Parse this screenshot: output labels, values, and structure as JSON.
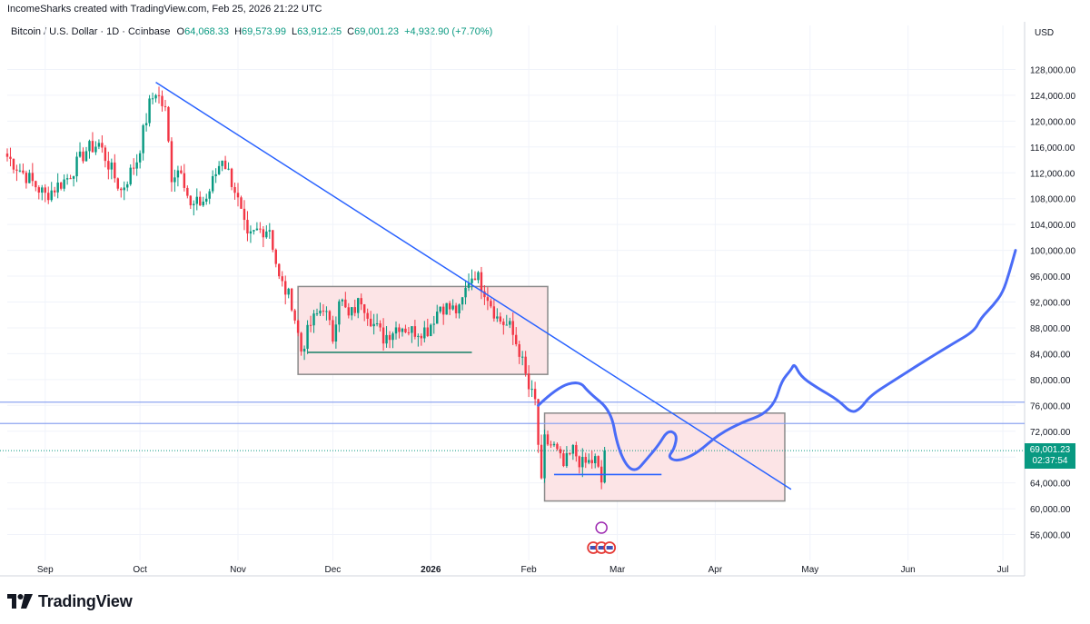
{
  "attribution": "IncomeSharks created with TradingView.com, Feb 25, 2026 21:22 UTC",
  "legend": {
    "symbol": "Bitcoin / U.S. Dollar · 1D · Coinbase",
    "o_label": "O",
    "o_value": "64,068.33",
    "h_label": "H",
    "h_value": "69,573.99",
    "l_label": "L",
    "l_value": "63,912.25",
    "c_label": "C",
    "c_value": "69,001.23",
    "change": "+4,932.90 (+7.70%)"
  },
  "price_tag": {
    "price": "69,001.23",
    "countdown": "02:37:54"
  },
  "footer": {
    "brand": "TradingView",
    "logo_icon": "tradingview-logo-icon"
  },
  "colors": {
    "up": "#089981",
    "down": "#f23645",
    "trendline": "#2962ff",
    "projection": "#4a6cf7",
    "zone_fill": "#fce4e6",
    "zone_border": "#8a8a8a",
    "support": "#26866e",
    "hline": "#8ea4f0"
  },
  "chart_data": {
    "type": "candlestick",
    "currency_label": "USD",
    "y_ticks": [
      "128,000.00",
      "124,000.00",
      "120,000.00",
      "116,000.00",
      "112,000.00",
      "108,000.00",
      "104,000.00",
      "100,000.00",
      "96,000.00",
      "92,000.00",
      "88,000.00",
      "84,000.00",
      "80,000.00",
      "76,000.00",
      "72,000.00",
      "68,000.00",
      "64,000.00",
      "60,000.00",
      "56,000.00"
    ],
    "y_tick_values": [
      128000,
      124000,
      120000,
      116000,
      112000,
      108000,
      104000,
      100000,
      96000,
      92000,
      88000,
      84000,
      80000,
      76000,
      72000,
      68000,
      64000,
      60000,
      56000
    ],
    "x_ticks": [
      {
        "label": "Sep",
        "date": "2025-09-01",
        "bold": false
      },
      {
        "label": "Oct",
        "date": "2025-10-01",
        "bold": false
      },
      {
        "label": "Nov",
        "date": "2025-11-01",
        "bold": false
      },
      {
        "label": "Dec",
        "date": "2025-12-01",
        "bold": false
      },
      {
        "label": "2026",
        "date": "2026-01-01",
        "bold": true
      },
      {
        "label": "Feb",
        "date": "2026-02-01",
        "bold": false
      },
      {
        "label": "Mar",
        "date": "2026-03-01",
        "bold": false
      },
      {
        "label": "Apr",
        "date": "2026-04-01",
        "bold": false
      },
      {
        "label": "May",
        "date": "2026-05-01",
        "bold": false
      },
      {
        "label": "Jun",
        "date": "2026-06-01",
        "bold": false
      },
      {
        "label": "Jul",
        "date": "2026-07-01",
        "bold": false
      }
    ],
    "x_range": [
      "2025-08-20",
      "2026-07-05"
    ],
    "y_range": [
      52000,
      132000
    ],
    "last_price": 69001.23,
    "candles_keypoints": [
      {
        "date": "2025-08-20",
        "close": 114500
      },
      {
        "date": "2025-08-28",
        "close": 110500
      },
      {
        "date": "2025-09-01",
        "close": 108500
      },
      {
        "date": "2025-09-08",
        "close": 111200
      },
      {
        "date": "2025-09-14",
        "close": 115500
      },
      {
        "date": "2025-09-18",
        "close": 116500
      },
      {
        "date": "2025-09-25",
        "close": 109200
      },
      {
        "date": "2025-09-30",
        "close": 114000
      },
      {
        "date": "2025-10-04",
        "close": 122500
      },
      {
        "date": "2025-10-06",
        "close": 124700
      },
      {
        "date": "2025-10-09",
        "close": 121500
      },
      {
        "date": "2025-10-11",
        "close": 111500
      },
      {
        "date": "2025-10-14",
        "close": 113000
      },
      {
        "date": "2025-10-17",
        "close": 106500
      },
      {
        "date": "2025-10-22",
        "close": 108000
      },
      {
        "date": "2025-10-27",
        "close": 114500
      },
      {
        "date": "2025-10-31",
        "close": 109500
      },
      {
        "date": "2025-11-04",
        "close": 101500
      },
      {
        "date": "2025-11-07",
        "close": 103000
      },
      {
        "date": "2025-11-11",
        "close": 103500
      },
      {
        "date": "2025-11-14",
        "close": 95500
      },
      {
        "date": "2025-11-18",
        "close": 92000
      },
      {
        "date": "2025-11-21",
        "close": 84500
      },
      {
        "date": "2025-11-24",
        "close": 88500
      },
      {
        "date": "2025-11-28",
        "close": 91500
      },
      {
        "date": "2025-12-01",
        "close": 86500
      },
      {
        "date": "2025-12-03",
        "close": 93000
      },
      {
        "date": "2025-12-06",
        "close": 89500
      },
      {
        "date": "2025-12-10",
        "close": 92500
      },
      {
        "date": "2025-12-14",
        "close": 88500
      },
      {
        "date": "2025-12-17",
        "close": 86500
      },
      {
        "date": "2025-12-22",
        "close": 88500
      },
      {
        "date": "2025-12-26",
        "close": 87500
      },
      {
        "date": "2025-12-31",
        "close": 87800
      },
      {
        "date": "2026-01-04",
        "close": 91500
      },
      {
        "date": "2026-01-07",
        "close": 91000
      },
      {
        "date": "2026-01-10",
        "close": 90500
      },
      {
        "date": "2026-01-13",
        "close": 95500
      },
      {
        "date": "2026-01-15",
        "close": 96500
      },
      {
        "date": "2026-01-19",
        "close": 93000
      },
      {
        "date": "2026-01-22",
        "close": 89500
      },
      {
        "date": "2026-01-26",
        "close": 88000
      },
      {
        "date": "2026-01-29",
        "close": 84500
      },
      {
        "date": "2026-02-01",
        "close": 78500
      },
      {
        "date": "2026-02-03",
        "close": 76500
      },
      {
        "date": "2026-02-05",
        "close": 63500
      },
      {
        "date": "2026-02-06",
        "close": 70500
      },
      {
        "date": "2026-02-09",
        "close": 69500
      },
      {
        "date": "2026-02-12",
        "close": 66500
      },
      {
        "date": "2026-02-15",
        "close": 69000
      },
      {
        "date": "2026-02-18",
        "close": 66800
      },
      {
        "date": "2026-02-22",
        "close": 67500
      },
      {
        "date": "2026-02-24",
        "close": 64068
      },
      {
        "date": "2026-02-25",
        "close": 69001
      }
    ],
    "drawings": {
      "trendline": [
        {
          "date": "2025-10-06",
          "price": 126000
        },
        {
          "date": "2026-04-25",
          "price": 63000
        }
      ],
      "zone_upper": {
        "x0": "2025-11-20",
        "x1": "2026-02-07",
        "y0": 80800,
        "y1": 94400
      },
      "zone_lower": {
        "x0": "2026-02-06",
        "x1": "2026-04-23",
        "y0": 61200,
        "y1": 74800
      },
      "support_upper": [
        {
          "date": "2025-11-23",
          "price": 84200
        },
        {
          "date": "2026-01-14",
          "price": 84200
        }
      ],
      "support_lower": [
        {
          "date": "2026-02-09",
          "price": 65300
        },
        {
          "date": "2026-03-15",
          "price": 65300
        }
      ],
      "hlines": [
        76500,
        73200
      ],
      "projection": [
        {
          "date": "2026-02-04",
          "price": 76000
        },
        {
          "date": "2026-02-10",
          "price": 78800
        },
        {
          "date": "2026-02-17",
          "price": 79800
        },
        {
          "date": "2026-02-20",
          "price": 78000
        },
        {
          "date": "2026-02-27",
          "price": 75200
        },
        {
          "date": "2026-03-01",
          "price": 69800
        },
        {
          "date": "2026-03-04",
          "price": 66500
        },
        {
          "date": "2026-03-07",
          "price": 65800
        },
        {
          "date": "2026-03-10",
          "price": 67500
        },
        {
          "date": "2026-03-14",
          "price": 69800
        },
        {
          "date": "2026-03-17",
          "price": 72200
        },
        {
          "date": "2026-03-20",
          "price": 71500
        },
        {
          "date": "2026-03-19",
          "price": 69200
        },
        {
          "date": "2026-03-17",
          "price": 68000
        },
        {
          "date": "2026-03-20",
          "price": 67300
        },
        {
          "date": "2026-03-26",
          "price": 68500
        },
        {
          "date": "2026-04-02",
          "price": 71500
        },
        {
          "date": "2026-04-10",
          "price": 73500
        },
        {
          "date": "2026-04-16",
          "price": 74500
        },
        {
          "date": "2026-04-20",
          "price": 76500
        },
        {
          "date": "2026-04-22",
          "price": 79800
        },
        {
          "date": "2026-04-25",
          "price": 81500
        },
        {
          "date": "2026-04-26",
          "price": 82500
        },
        {
          "date": "2026-04-28",
          "price": 80500
        },
        {
          "date": "2026-05-03",
          "price": 78800
        },
        {
          "date": "2026-05-10",
          "price": 76800
        },
        {
          "date": "2026-05-14",
          "price": 74800
        },
        {
          "date": "2026-05-17",
          "price": 75500
        },
        {
          "date": "2026-05-20",
          "price": 77500
        },
        {
          "date": "2026-05-28",
          "price": 80000
        },
        {
          "date": "2026-06-05",
          "price": 82500
        },
        {
          "date": "2026-06-15",
          "price": 85500
        },
        {
          "date": "2026-06-22",
          "price": 87500
        },
        {
          "date": "2026-06-24",
          "price": 89500
        },
        {
          "date": "2026-06-28",
          "price": 91500
        },
        {
          "date": "2026-07-01",
          "price": 93500
        },
        {
          "date": "2026-07-03",
          "price": 96500
        },
        {
          "date": "2026-07-05",
          "price": 100000
        }
      ]
    }
  }
}
